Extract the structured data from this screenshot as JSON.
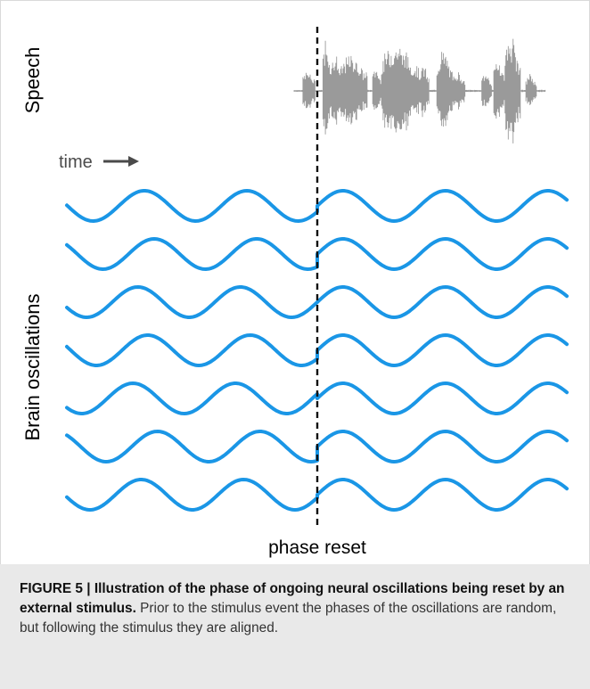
{
  "figure": {
    "speech_label": "Speech",
    "time_label": "time",
    "oscillations_label": "Brain oscillations",
    "phase_reset_label": "phase reset",
    "colors": {
      "wave": "#1a96e6",
      "speech": "#9a9a9a",
      "arrow": "#4a4a4a",
      "dashed_line": "#111111"
    },
    "oscillation_count": 7
  },
  "caption": {
    "label": "FIGURE 5 | ",
    "title": "Illustration of the phase of ongoing neural oscillations being reset by an external stimulus.",
    "text": " Prior to the stimulus event the phases of the oscillations are random, but following the stimulus they are aligned."
  }
}
